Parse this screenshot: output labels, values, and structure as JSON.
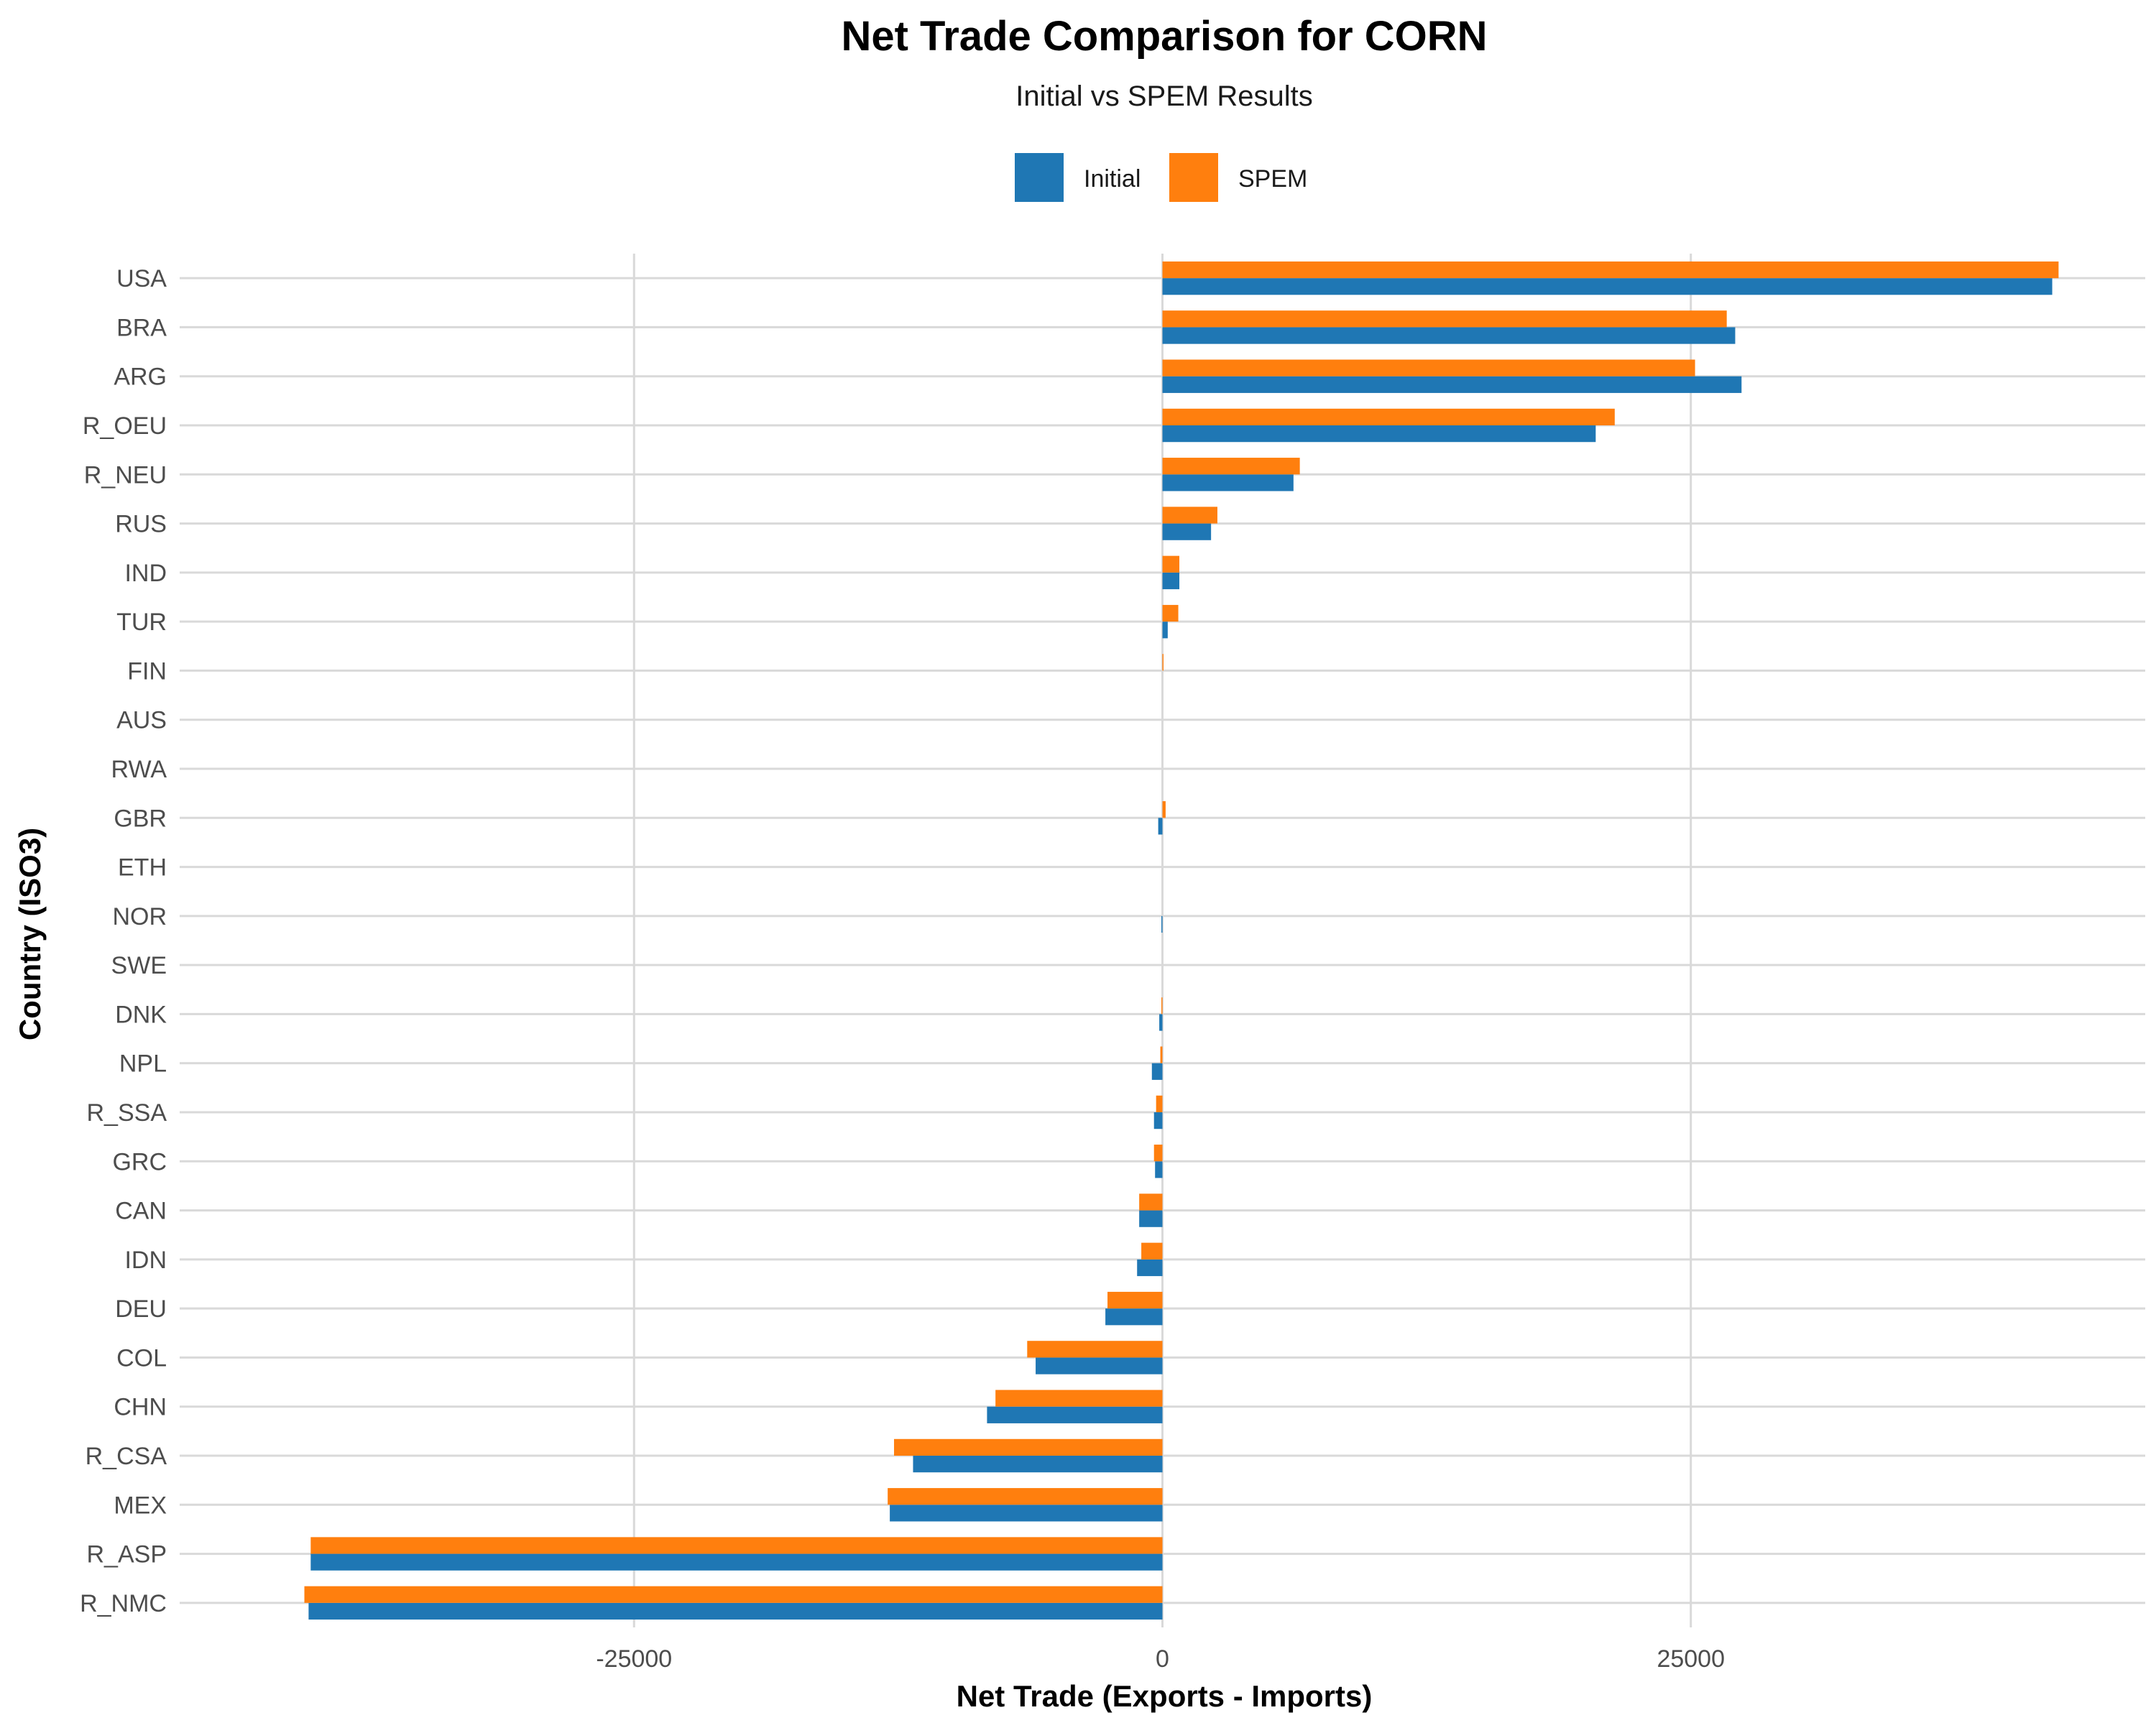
{
  "chart_data": {
    "type": "bar",
    "orientation": "horizontal",
    "title": "Net Trade Comparison for CORN",
    "subtitle": "Initial vs SPEM Results",
    "xlabel": "Net Trade (Exports - Imports)",
    "ylabel": "Country (ISO3)",
    "xlim": [
      -46500,
      46500
    ],
    "x_ticks": [
      -25000,
      0,
      25000
    ],
    "x_tick_labels": [
      "-25000",
      "0",
      "25000"
    ],
    "grid": true,
    "legend_position": "top",
    "categories": [
      "USA",
      "BRA",
      "ARG",
      "R_OEU",
      "R_NEU",
      "RUS",
      "IND",
      "TUR",
      "FIN",
      "AUS",
      "RWA",
      "GBR",
      "ETH",
      "NOR",
      "SWE",
      "DNK",
      "NPL",
      "R_SSA",
      "GRC",
      "CAN",
      "IDN",
      "DEU",
      "COL",
      "CHN",
      "R_CSA",
      "MEX",
      "R_ASP",
      "R_NMC"
    ],
    "series": [
      {
        "name": "Initial",
        "color": "#1F77B4",
        "values": [
          42100,
          27100,
          27400,
          20500,
          6200,
          2300,
          800,
          250,
          0,
          0,
          0,
          -200,
          0,
          -50,
          0,
          -150,
          -500,
          -400,
          -350,
          -1100,
          -1200,
          -2700,
          -6000,
          -8300,
          -11800,
          -12900,
          -40300,
          -40400
        ]
      },
      {
        "name": "SPEM",
        "color": "#FF7F0E",
        "values": [
          42400,
          26700,
          25200,
          21400,
          6500,
          2600,
          800,
          750,
          50,
          0,
          0,
          150,
          0,
          0,
          0,
          -50,
          -100,
          -300,
          -400,
          -1100,
          -1000,
          -2600,
          -6400,
          -7900,
          -12700,
          -13000,
          -40300,
          -40600
        ]
      }
    ]
  }
}
